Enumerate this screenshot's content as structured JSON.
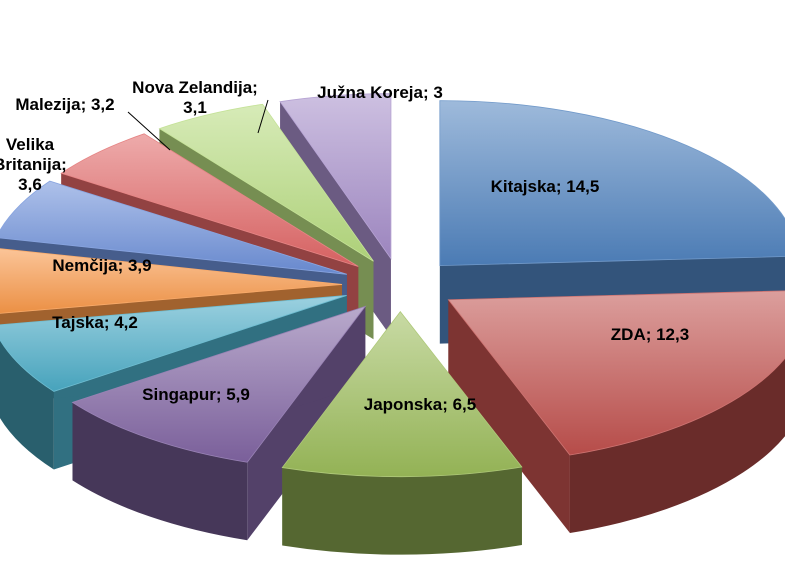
{
  "chart_data": {
    "type": "pie",
    "title": "",
    "legend": "none",
    "slices": [
      {
        "label": "Kitajska",
        "value": 14.5,
        "display": "Kitajska; 14,5",
        "color": "#4F81BD"
      },
      {
        "label": "ZDA",
        "value": 12.3,
        "display": "ZDA; 12,3",
        "color": "#C0504D"
      },
      {
        "label": "Japonska",
        "value": 6.5,
        "display": "Japonska; 6,5",
        "color": "#9BBB59"
      },
      {
        "label": "Singapur",
        "value": 5.9,
        "display": "Singapur; 5,9",
        "color": "#8064A2"
      },
      {
        "label": "Tajska",
        "value": 4.2,
        "display": "Tajska; 4,2",
        "color": "#4BACC6"
      },
      {
        "label": "Nemčija",
        "value": 3.9,
        "display": "Nemčija; 3,9",
        "color": "#F79646"
      },
      {
        "label": "Velika Britanija",
        "value": 3.6,
        "display": [
          "Velika",
          "Britanija;",
          "3,6"
        ],
        "color": "#6C8FD8"
      },
      {
        "label": "Malezija",
        "value": 3.2,
        "display": "Malezija; 3,2",
        "color": "#E06666"
      },
      {
        "label": "Nova Zelandija",
        "value": 3.1,
        "display": [
          "Nova Zelandija;",
          "3,1"
        ],
        "color": "#B6DB7E"
      },
      {
        "label": "Južna Koreja",
        "value": 3.0,
        "display": "Južna Koreja; 3",
        "color": "#A48CC8"
      }
    ]
  }
}
